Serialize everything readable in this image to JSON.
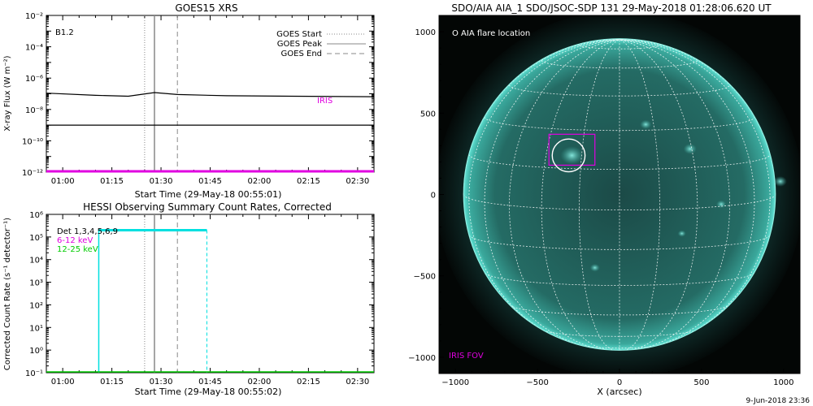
{
  "footer_date": "9-Jun-2018 23:36",
  "chart_data": [
    {
      "type": "line",
      "title": "GOES15 XRS",
      "class_label": "B1.2",
      "xlabel": "Start Time (29-May-18 00:55:01)",
      "ylabel": "X-ray Flux (W m⁻²)",
      "x_ticks": [
        "01:00",
        "01:15",
        "01:30",
        "01:45",
        "02:00",
        "02:15",
        "02:30"
      ],
      "y_ticks": [
        "10⁻¹²",
        "10⁻¹⁰",
        "10⁻⁸",
        "10⁻⁶",
        "10⁻⁴",
        "10⁻²"
      ],
      "y_scale": "log",
      "ylim": [
        1e-12,
        0.01
      ],
      "xlim": [
        "00:55",
        "02:35"
      ],
      "legend": [
        {
          "label": "GOES Start",
          "style": "dotted"
        },
        {
          "label": "GOES Peak",
          "style": "solid"
        },
        {
          "label": "GOES End",
          "style": "dashed"
        }
      ],
      "legend_position": "top-right",
      "series": [
        {
          "values_desc": "long channel",
          "points": [
            [
              "00:55",
              1.1e-07
            ],
            [
              "01:10",
              8e-08
            ],
            [
              "01:20",
              7e-08
            ],
            [
              "01:28",
              1.2e-07
            ],
            [
              "01:35",
              9e-08
            ],
            [
              "01:50",
              7.5e-08
            ],
            [
              "02:10",
              7e-08
            ],
            [
              "02:35",
              6.5e-08
            ]
          ]
        },
        {
          "values_desc": "short channel",
          "points": [
            [
              "00:55",
              1e-09
            ],
            [
              "02:35",
              1e-09
            ]
          ]
        }
      ],
      "vlines": {
        "start": "01:25",
        "peak": "01:28",
        "end": "01:35"
      },
      "iris_label": "IRIS",
      "iris_color": "#e000e0",
      "iris_level": 1e-12
    },
    {
      "type": "line",
      "title": "HESSI Observing Summary Count Rates, Corrected",
      "xlabel": "Start Time (29-May-18 00:55:02)",
      "ylabel": "Corrected Count Rate (s⁻¹ detector⁻¹)",
      "x_ticks": [
        "01:00",
        "01:15",
        "01:30",
        "01:45",
        "02:00",
        "02:15",
        "02:30"
      ],
      "y_ticks": [
        "10⁻¹",
        "10⁰",
        "10¹",
        "10²",
        "10³",
        "10⁴",
        "10⁵",
        "10⁶"
      ],
      "y_scale": "log",
      "ylim": [
        0.1,
        1000000.0
      ],
      "legend": [
        {
          "label": "Det 1,3,4,5,6,9",
          "color": "#000000"
        },
        {
          "label": "6-12 keV",
          "color": "#e000e0"
        },
        {
          "label": "12-25 keV",
          "color": "#00cc00"
        }
      ],
      "cyan_color": "#00e0e0",
      "cyan_level": 200000.0,
      "cyan_start": "01:11",
      "cyan_end": "01:44",
      "vlines": {
        "start": "01:25",
        "peak": "01:28",
        "end": "01:35"
      }
    },
    {
      "type": "heatmap",
      "title": "SDO/AIA AIA_1 SDO/JSOC-SDP 131 29-May-2018 01:28:06.620 UT",
      "xlabel": "X (arcsec)",
      "ylabel": "",
      "x_ticks": [
        "−1000",
        "−500",
        "0",
        "500",
        "1000"
      ],
      "y_ticks": [
        "−1000",
        "−500",
        "0",
        "500",
        "1000"
      ],
      "xlim": [
        -1100,
        1100
      ],
      "ylim": [
        -1100,
        1100
      ],
      "solar_radius_arcsec": 950,
      "flare_location_label": "O AIA flare location",
      "flare_location": [
        -310,
        240
      ],
      "iris_fov_label": "IRIS FOV",
      "iris_fov_box": [
        [
          -430,
          180
        ],
        [
          -150,
          370
        ]
      ],
      "disk_color": "#1f5f5a",
      "limb_color": "#48d6c8"
    }
  ]
}
